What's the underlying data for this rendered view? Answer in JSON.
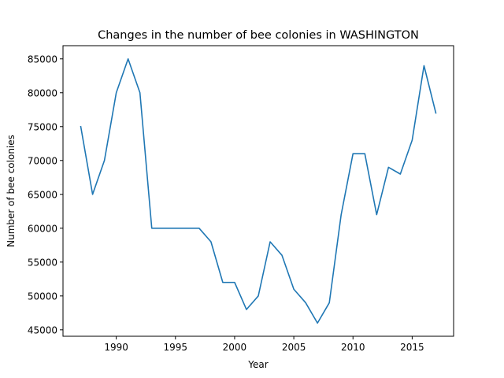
{
  "chart_data": {
    "type": "line",
    "title": "Changes in the number of bee colonies in WASHINGTON",
    "xlabel": "Year",
    "ylabel": "Number of bee colonies",
    "xlim": [
      1985.5,
      2018.5
    ],
    "ylim": [
      44050,
      86950
    ],
    "xticks": [
      1990,
      1995,
      2000,
      2005,
      2010,
      2015
    ],
    "yticks": [
      45000,
      50000,
      55000,
      60000,
      65000,
      70000,
      75000,
      80000,
      85000
    ],
    "grid": false,
    "series": [
      {
        "color": "#1f77b4",
        "x": [
          1987,
          1988,
          1989,
          1990,
          1991,
          1992,
          1993,
          1994,
          1995,
          1996,
          1997,
          1998,
          1999,
          2000,
          2001,
          2002,
          2003,
          2004,
          2005,
          2006,
          2007,
          2008,
          2009,
          2010,
          2011,
          2012,
          2013,
          2014,
          2015,
          2016,
          2017
        ],
        "y": [
          75000,
          65000,
          70000,
          80000,
          85000,
          80000,
          60000,
          60000,
          60000,
          60000,
          60000,
          58000,
          52000,
          52000,
          48000,
          50000,
          58000,
          56000,
          51000,
          49000,
          46000,
          49000,
          62000,
          71000,
          71000,
          62000,
          69000,
          68000,
          73000,
          84000,
          77000
        ]
      }
    ]
  }
}
